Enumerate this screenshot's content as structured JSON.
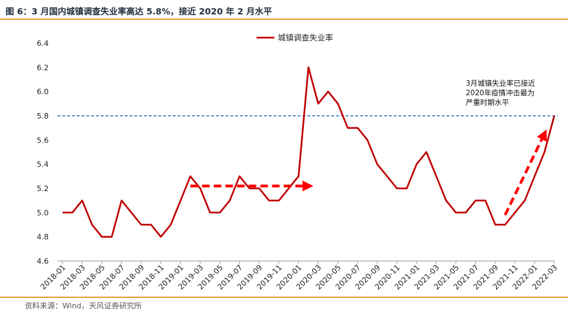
{
  "figure": {
    "title": "图 6：3 月国内城镇调查失业率高达 5.8%，接近 2020 年 2 月水平",
    "source": "资料来源：Wind，天风证券研究所"
  },
  "colors": {
    "series": "#c00000",
    "reference_line": "#2e75b6",
    "arrow": "#ff0000",
    "rule": "#e8a13c"
  },
  "chart_data": {
    "type": "line",
    "title": "",
    "xlabel": "",
    "ylabel": "",
    "ylim": [
      4.6,
      6.4
    ],
    "yticks": [
      "4.6",
      "4.8",
      "5.0",
      "5.2",
      "5.4",
      "5.6",
      "5.8",
      "6.0",
      "6.2",
      "6.4"
    ],
    "legend": "top-center",
    "grid": false,
    "x": [
      "2018-01",
      "2018-02",
      "2018-03",
      "2018-04",
      "2018-05",
      "2018-06",
      "2018-07",
      "2018-08",
      "2018-09",
      "2018-10",
      "2018-11",
      "2018-12",
      "2019-01",
      "2019-02",
      "2019-03",
      "2019-04",
      "2019-05",
      "2019-06",
      "2019-07",
      "2019-08",
      "2019-09",
      "2019-10",
      "2019-11",
      "2019-12",
      "2020-01",
      "2020-02",
      "2020-03",
      "2020-04",
      "2020-05",
      "2020-06",
      "2020-07",
      "2020-08",
      "2020-09",
      "2020-10",
      "2020-11",
      "2020-12",
      "2021-01",
      "2021-02",
      "2021-03",
      "2021-04",
      "2021-05",
      "2021-06",
      "2021-07",
      "2021-08",
      "2021-09",
      "2021-10",
      "2021-11",
      "2021-12",
      "2022-01",
      "2022-02",
      "2022-03"
    ],
    "xtick_labels": [
      "2018-01",
      "2018-03",
      "2018-05",
      "2018-07",
      "2018-09",
      "2018-11",
      "2019-01",
      "2019-03",
      "2019-05",
      "2019-07",
      "2019-09",
      "2019-11",
      "2020-01",
      "2020-03",
      "2020-05",
      "2020-07",
      "2020-09",
      "2020-11",
      "2021-01",
      "2021-03",
      "2021-05",
      "2021-07",
      "2021-09",
      "2021-11",
      "2022-01",
      "2022-03"
    ],
    "series": [
      {
        "name": "城镇调查失业率",
        "values": [
          5.0,
          5.0,
          5.1,
          4.9,
          4.8,
          4.8,
          5.1,
          5.0,
          4.9,
          4.9,
          4.8,
          4.9,
          5.1,
          5.3,
          5.2,
          5.0,
          5.0,
          5.1,
          5.3,
          5.2,
          5.2,
          5.1,
          5.1,
          5.2,
          5.3,
          6.2,
          5.9,
          6.0,
          5.9,
          5.7,
          5.7,
          5.6,
          5.4,
          5.3,
          5.2,
          5.2,
          5.4,
          5.5,
          5.3,
          5.1,
          5.0,
          5.0,
          5.1,
          5.1,
          4.9,
          4.9,
          5.0,
          5.1,
          5.3,
          5.5,
          5.8
        ]
      }
    ],
    "reference_line": {
      "y": 5.8
    },
    "annotation": {
      "lines": [
        "3月城镇失业率已接近",
        "2020年疫情冲击最为",
        "严重时期水平"
      ]
    },
    "arrows": [
      {
        "from": [
          "2019-02",
          5.22
        ],
        "to": [
          "2020-02",
          5.22
        ]
      },
      {
        "from": [
          "2021-10",
          4.98
        ],
        "to": [
          "2022-02",
          5.65
        ]
      }
    ]
  }
}
